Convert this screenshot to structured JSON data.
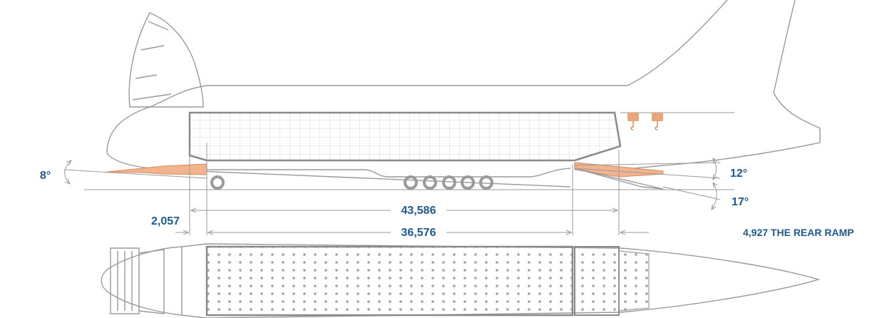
{
  "labels": {
    "nose_ramp_angle": "8°",
    "rear_ramp_upper_angle": "12°",
    "rear_ramp_lower_angle": "17°",
    "front_ramp_length": "2,057",
    "overall_hold_length": "43,586",
    "cargo_floor_length": "36,576",
    "rear_ramp_length": "4,927 THE REAR RAMP"
  },
  "colors": {
    "label": "#1f5a8f",
    "outline": "#9a9a9a",
    "ramp": "#f2b48e",
    "grid": "#c8c8c8",
    "wheel": "#9a9a9a"
  }
}
